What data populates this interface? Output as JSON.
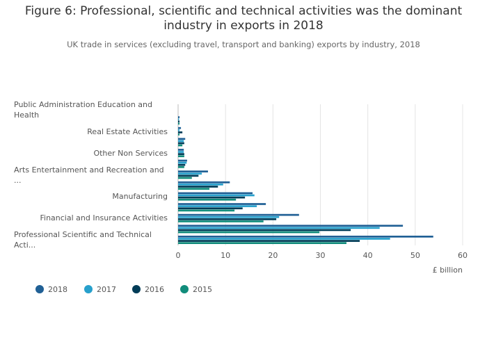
{
  "chart_data": {
    "type": "bar",
    "orientation": "horizontal",
    "title": "Figure 6: Professional, scientific and technical activities was the dominant industry in exports in 2018",
    "subtitle": "UK trade in services (excluding travel, transport and banking) exports by industry, 2018",
    "x_label": "£ billion",
    "categories": [
      "Professional Scientific and Technical Acti...",
      null,
      "Financial and Insurance Activities",
      null,
      "Manufacturing",
      null,
      "Arts Entertainment and Recreation and ...",
      null,
      "Other Non Services",
      null,
      "Real Estate Activities",
      null,
      "Public Administration Education and Health"
    ],
    "series": [
      {
        "name": "2018",
        "color": "#206095",
        "values": [
          53.8,
          47.4,
          25.5,
          18.5,
          15.7,
          10.9,
          6.3,
          1.9,
          1.2,
          1.5,
          0.6,
          0.3,
          0
        ]
      },
      {
        "name": "2017",
        "color": "#27a0cc",
        "values": [
          44.7,
          42.5,
          21.3,
          16.6,
          16.1,
          9.5,
          5.0,
          1.8,
          1.2,
          1.2,
          0.3,
          0.2,
          0
        ]
      },
      {
        "name": "2016",
        "color": "#003c57",
        "values": [
          38.3,
          36.4,
          20.7,
          13.6,
          14.1,
          8.4,
          4.3,
          1.5,
          1.3,
          1.3,
          0.9,
          0.3,
          0
        ]
      },
      {
        "name": "2015",
        "color": "#118c7b",
        "values": [
          35.5,
          29.8,
          18.0,
          11.9,
          12.2,
          6.6,
          2.9,
          1.3,
          1.3,
          0.9,
          0.3,
          0.3,
          0
        ]
      }
    ],
    "xlim": [
      0,
      60
    ],
    "xticks": [
      0,
      10,
      20,
      30,
      40,
      50,
      60
    ],
    "grid": true,
    "legend": "bottom-left"
  }
}
